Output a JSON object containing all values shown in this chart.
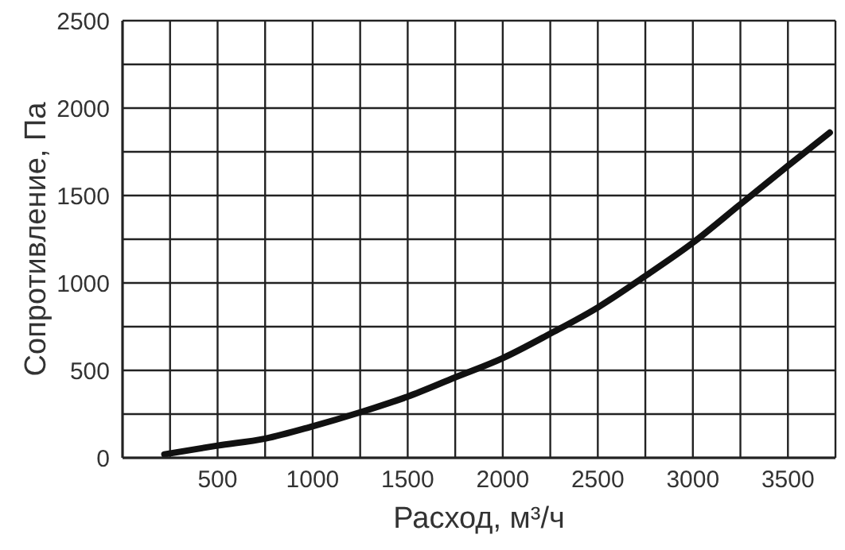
{
  "chart_data": {
    "type": "line",
    "xlabel": "Расход, м³/ч",
    "ylabel": "Сопротивление, Па",
    "x": [
      220,
      500,
      750,
      1000,
      1250,
      1500,
      1750,
      2000,
      2250,
      2500,
      2750,
      3000,
      3250,
      3500,
      3720
    ],
    "series": [
      {
        "color": "#111111",
        "values": [
          20,
          70,
          110,
          180,
          260,
          350,
          460,
          570,
          710,
          860,
          1040,
          1230,
          1450,
          1670,
          1860
        ]
      }
    ],
    "xlim": [
      0,
      3750
    ],
    "ylim": [
      0,
      2500
    ],
    "xticks": [
      {
        "value": 0,
        "label": null
      },
      {
        "value": 250,
        "label": null
      },
      500,
      {
        "value": 750,
        "label": null
      },
      1000,
      {
        "value": 1250,
        "label": null
      },
      1500,
      {
        "value": 1750,
        "label": null
      },
      2000,
      {
        "value": 2250,
        "label": null
      },
      2500,
      {
        "value": 2750,
        "label": null
      },
      3000,
      {
        "value": 3250,
        "label": null
      },
      3500,
      {
        "value": 3750,
        "label": null
      }
    ],
    "yticks": [
      0,
      {
        "value": 250,
        "label": null
      },
      500,
      {
        "value": 750,
        "label": null
      },
      1000,
      {
        "value": 1250,
        "label": null
      },
      1500,
      {
        "value": 1750,
        "label": null
      },
      2000,
      {
        "value": 2250,
        "label": null
      },
      2500
    ],
    "grid": true,
    "marker": "none",
    "line_style": "solid",
    "legend": false
  }
}
